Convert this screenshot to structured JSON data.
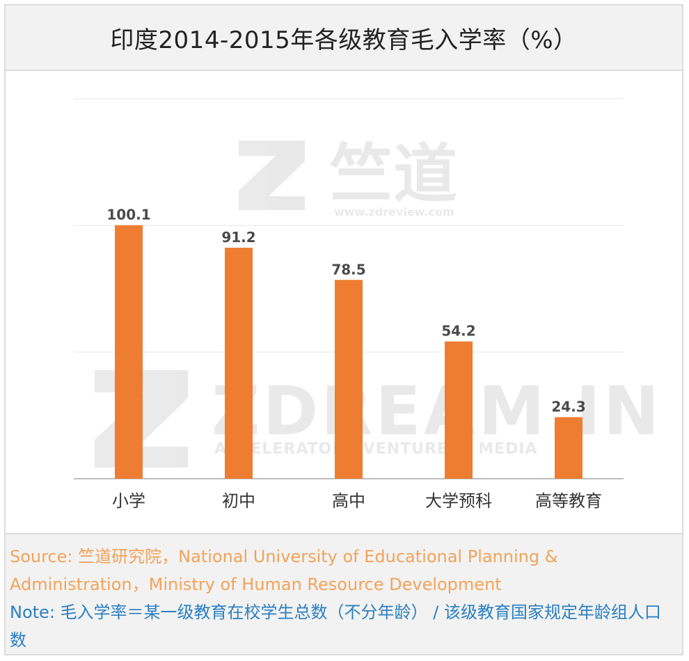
{
  "title": "印度2014-2015年各级教育毛入学率（%）",
  "chart_data": {
    "type": "bar",
    "categories": [
      "小学",
      "初中",
      "高中",
      "大学预科",
      "高等教育"
    ],
    "values": [
      100.1,
      91.2,
      78.5,
      54.2,
      24.3
    ],
    "ylim": [
      0,
      150
    ],
    "grid": true,
    "bar_color": "#ee7d31",
    "data_labels": [
      "100.1",
      "91.2",
      "78.5",
      "54.2",
      "24.3"
    ]
  },
  "watermarks": {
    "top_brand": "竺道",
    "top_url": "www.zdreview.com",
    "bottom_brand": "ZDREAM.IN",
    "bottom_tagline": "ACCELERATOR | VENTURES | MEDIA"
  },
  "footer": {
    "source": "Source: 竺道研究院，National University of Educational Planning & Administration，Ministry of Human Resource Development",
    "note": "Note: 毛入学率＝某一级教育在校学生总数（不分年龄） / 该级教育国家规定年龄组人口数"
  },
  "colors": {
    "bar": "#ee7d31",
    "source_text": "#f2a35a",
    "note_text": "#2a7fc1",
    "label_text": "#4a4a4a"
  }
}
